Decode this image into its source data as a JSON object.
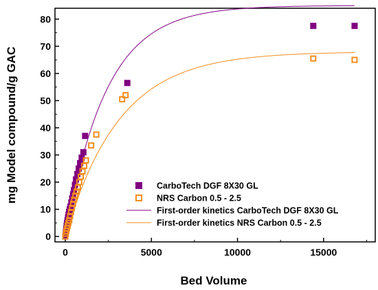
{
  "chart_data": {
    "type": "scatter",
    "xlabel": "Bed Volume",
    "ylabel": "mg Model compound/g GAC",
    "xlim": [
      -600,
      18000
    ],
    "ylim": [
      -2,
      84
    ],
    "x_ticks": [
      0,
      5000,
      10000,
      15000
    ],
    "y_ticks": [
      0,
      10,
      20,
      30,
      40,
      50,
      60,
      70,
      80
    ],
    "grid": false,
    "legend_position": "bottom-right",
    "colors": {
      "carbotech": "#800080",
      "nrs": "#f28c1c"
    },
    "series": [
      {
        "name": "CarboTech DGF 8X30 GL",
        "kind": "points",
        "marker": "filled-square",
        "x": [
          0,
          20,
          40,
          60,
          80,
          100,
          130,
          160,
          190,
          220,
          260,
          300,
          350,
          400,
          450,
          500,
          560,
          620,
          700,
          780,
          860,
          950,
          1050,
          1150,
          3600,
          14400,
          16800
        ],
        "y": [
          0,
          1,
          2,
          3,
          4,
          5,
          6,
          7,
          8,
          9,
          10,
          11,
          12.5,
          14,
          15.5,
          17,
          19,
          21,
          23,
          25,
          27,
          29,
          31,
          37,
          56.5,
          77.5,
          77.5
        ]
      },
      {
        "name": "NRS Carbon 0.5 - 2.5",
        "kind": "points",
        "marker": "open-square",
        "x": [
          0,
          30,
          60,
          100,
          140,
          180,
          230,
          280,
          330,
          390,
          450,
          510,
          580,
          650,
          730,
          810,
          900,
          1000,
          1100,
          1200,
          1500,
          1800,
          3300,
          3500,
          14400,
          16800
        ],
        "y": [
          0,
          1,
          2,
          3,
          4,
          5,
          6,
          7.5,
          9,
          10.5,
          12,
          13.5,
          15,
          16.5,
          18,
          20,
          22,
          24,
          26,
          28,
          33.5,
          37.5,
          50.5,
          52,
          65.5,
          65
        ]
      },
      {
        "name": "First-order kinetics CarboTech DGF 8X30 GL",
        "kind": "fit",
        "qmax": 85,
        "k": 0.00042
      },
      {
        "name": "First-order kinetics NRS Carbon 0.5 - 2.5",
        "kind": "fit",
        "qmax": 68,
        "k": 0.00032
      }
    ]
  }
}
